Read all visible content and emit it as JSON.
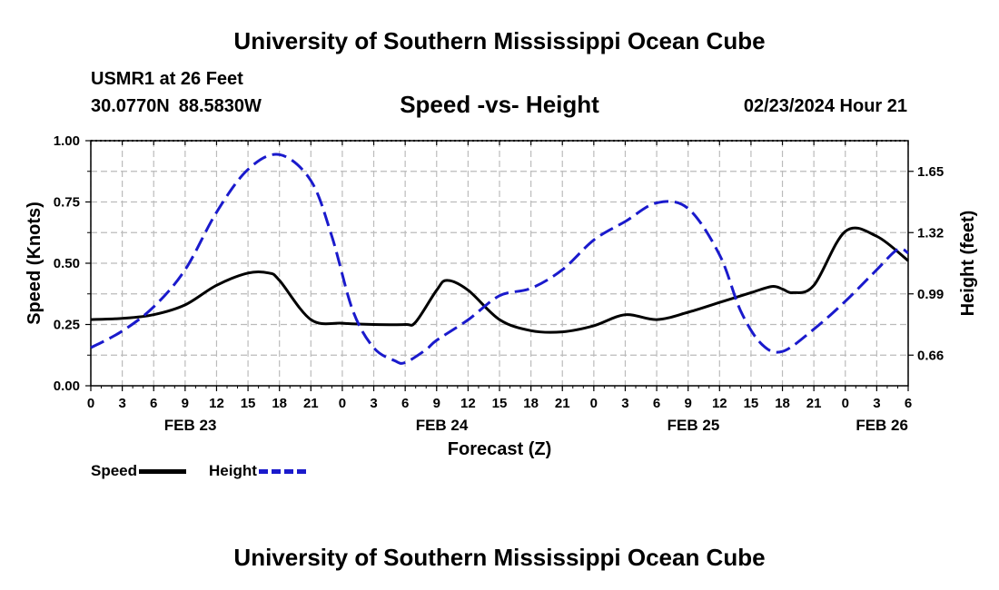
{
  "header": {
    "title": "University of Southern Mississippi Ocean Cube",
    "station": "USMR1 at 26 Feet",
    "latitude": "30.0770N",
    "longitude": "88.5830W",
    "subtitle": "Speed -vs- Height",
    "datetime": "02/23/2024 Hour 21"
  },
  "footer": {
    "title": "University of Southern Mississippi Ocean Cube"
  },
  "legend": {
    "speed_label": "Speed",
    "height_label": "Height"
  },
  "colors": {
    "speed": "#000000",
    "height": "#1a1acc",
    "grid": "#bbbbbb"
  },
  "chart_data": {
    "type": "line",
    "title": "Speed -vs- Height",
    "xlabel": "Forecast (Z)",
    "ylabel": "Speed (Knots)",
    "y2label": "Height (feet)",
    "x_unit": "hours since FEB 23 00Z",
    "xlim": [
      0,
      78
    ],
    "ylim": [
      0,
      1
    ],
    "y2lim": [
      0.495,
      1.815
    ],
    "y_ticks": [
      0.0,
      0.25,
      0.5,
      0.75,
      1.0
    ],
    "y_tick_labels": [
      "0.00",
      "0.25",
      "0.50",
      "0.75",
      "1.00"
    ],
    "y2_ticks": [
      0.66,
      0.99,
      1.32,
      1.65
    ],
    "y2_tick_labels": [
      "0.66",
      "0.99",
      "1.32",
      "1.65"
    ],
    "x_ticks": [
      0,
      3,
      6,
      9,
      12,
      15,
      18,
      21,
      24,
      27,
      30,
      33,
      36,
      39,
      42,
      45,
      48,
      51,
      54,
      57,
      60,
      63,
      66,
      69,
      72,
      75,
      78
    ],
    "x_tick_labels": [
      "0",
      "3",
      "6",
      "9",
      "12",
      "15",
      "18",
      "21",
      "0",
      "3",
      "6",
      "9",
      "12",
      "15",
      "18",
      "21",
      "0",
      "3",
      "6",
      "9",
      "12",
      "15",
      "18",
      "21",
      "0",
      "3",
      "6"
    ],
    "date_labels": [
      {
        "x": 9.5,
        "label": "FEB 23"
      },
      {
        "x": 33.5,
        "label": "FEB 24"
      },
      {
        "x": 57.5,
        "label": "FEB 25"
      },
      {
        "x": 75.5,
        "label": "FEB 26"
      }
    ],
    "grid": true,
    "series": [
      {
        "name": "Speed",
        "axis": "left",
        "style": "solid",
        "x": [
          0,
          3,
          6,
          9,
          12,
          15,
          17,
          18,
          21,
          24,
          27,
          30,
          31,
          33,
          34,
          36,
          39,
          42,
          45,
          48,
          51,
          54,
          57,
          60,
          63,
          65,
          66,
          67,
          69,
          72,
          75,
          78
        ],
        "values": [
          0.27,
          0.275,
          0.29,
          0.33,
          0.41,
          0.46,
          0.46,
          0.43,
          0.27,
          0.255,
          0.25,
          0.25,
          0.26,
          0.39,
          0.43,
          0.39,
          0.27,
          0.225,
          0.22,
          0.245,
          0.29,
          0.27,
          0.3,
          0.34,
          0.38,
          0.405,
          0.395,
          0.38,
          0.41,
          0.63,
          0.61,
          0.51
        ]
      },
      {
        "name": "Height",
        "axis": "right",
        "style": "dashed",
        "x": [
          0,
          3,
          6,
          9,
          12,
          15,
          18,
          21,
          23,
          25,
          27,
          29,
          30,
          32,
          33,
          36,
          39,
          42,
          45,
          48,
          51,
          54,
          57,
          60,
          62,
          64,
          66,
          69,
          72,
          75,
          77,
          78
        ],
        "values": [
          0.7,
          0.79,
          0.92,
          1.12,
          1.43,
          1.66,
          1.74,
          1.6,
          1.3,
          0.9,
          0.7,
          0.63,
          0.62,
          0.69,
          0.74,
          0.85,
          0.98,
          1.02,
          1.12,
          1.28,
          1.38,
          1.48,
          1.45,
          1.2,
          0.9,
          0.72,
          0.68,
          0.8,
          0.95,
          1.12,
          1.23,
          1.21
        ]
      }
    ]
  }
}
